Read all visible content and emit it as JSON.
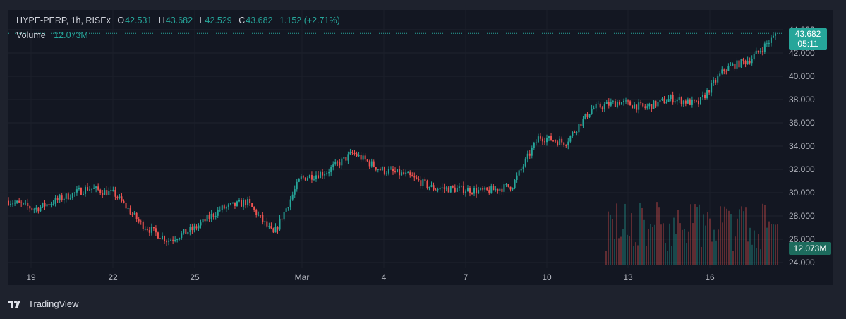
{
  "legend": {
    "symbol": "HYPE-PERP, 1h, RISEx",
    "o_label": "O",
    "o_value": "42.531",
    "h_label": "H",
    "h_value": "43.682",
    "l_label": "L",
    "l_value": "42.529",
    "c_label": "C",
    "c_value": "43.682",
    "change": "1.152 (+2.71%)",
    "volume_label": "Volume",
    "volume_value": "12.073M"
  },
  "price_tag": {
    "price": "43.682",
    "countdown": "05:11"
  },
  "volume_tag": "12.073M",
  "brand": "TradingView",
  "colors": {
    "up": "#26a69a",
    "down": "#ef5350",
    "background": "#131722",
    "frame": "#1e222d"
  },
  "chart_data": {
    "type": "candlestick",
    "interval": "1h",
    "y_axis_ticks": [
      "24.000",
      "26.000",
      "28.000",
      "30.000",
      "32.000",
      "34.000",
      "36.000",
      "38.000",
      "40.000",
      "42.000",
      "44.000"
    ],
    "ylim": [
      24,
      44
    ],
    "x_axis_ticks": [
      "19",
      "22",
      "25",
      "Mar",
      "4",
      "7",
      "10",
      "13",
      "16"
    ],
    "approx_close_series": [
      {
        "date": "Feb 18",
        "close": 29.3
      },
      {
        "date": "Feb 19",
        "close": 28.6
      },
      {
        "date": "Feb 20",
        "close": 29.5
      },
      {
        "date": "Feb 21",
        "close": 30.4
      },
      {
        "date": "Feb 22",
        "close": 29.9
      },
      {
        "date": "Feb 23",
        "close": 27.3
      },
      {
        "date": "Feb 24",
        "close": 25.9
      },
      {
        "date": "Feb 25",
        "close": 26.9
      },
      {
        "date": "Feb 26",
        "close": 28.6
      },
      {
        "date": "Feb 27",
        "close": 29.2
      },
      {
        "date": "Feb 28",
        "close": 26.4
      },
      {
        "date": "Mar 1",
        "close": 31.2
      },
      {
        "date": "Mar 2",
        "close": 31.8
      },
      {
        "date": "Mar 3",
        "close": 33.4
      },
      {
        "date": "Mar 4",
        "close": 32.0
      },
      {
        "date": "Mar 5",
        "close": 31.5
      },
      {
        "date": "Mar 6",
        "close": 30.4
      },
      {
        "date": "Mar 7",
        "close": 30.3
      },
      {
        "date": "Mar 8",
        "close": 30.1
      },
      {
        "date": "Mar 9",
        "close": 30.6
      },
      {
        "date": "Mar 10",
        "close": 34.8
      },
      {
        "date": "Mar 11",
        "close": 34.3
      },
      {
        "date": "Mar 12",
        "close": 37.2
      },
      {
        "date": "Mar 13",
        "close": 37.8
      },
      {
        "date": "Mar 14",
        "close": 37.3
      },
      {
        "date": "Mar 15",
        "close": 38.1
      },
      {
        "date": "Mar 16",
        "close": 37.6
      },
      {
        "date": "Mar 17",
        "close": 40.6
      },
      {
        "date": "Mar 18",
        "close": 41.5
      },
      {
        "date": "Mar 19",
        "close": 43.682
      }
    ],
    "last": {
      "open": 42.531,
      "high": 43.682,
      "low": 42.529,
      "close": 43.682,
      "volume": "12.073M"
    }
  }
}
